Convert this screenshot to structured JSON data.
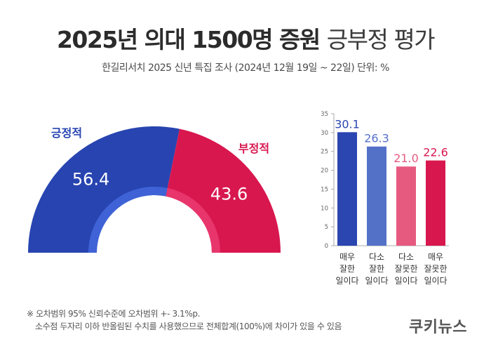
{
  "title_bold": "2025년 의대 1500명 증원",
  "title_light": "긍부정 평가",
  "subtitle": "한길리서치 2025 신년 특집 조사 (2024년 12월 19일 ~ 22일) 단위: %",
  "colors": {
    "positive": "#2744b0",
    "negative": "#d8174f",
    "inner_positive": "#3f63d6",
    "inner_negative": "#e8356c",
    "bar_very_good": "#2b45b1",
    "bar_some_good": "#5471c8",
    "bar_some_bad": "#e65a80",
    "bar_very_bad": "#d8174f"
  },
  "chart_data": [
    {
      "type": "pie",
      "style": "half-donut",
      "categories": [
        "긍정적",
        "부정적"
      ],
      "values": [
        56.4,
        43.6
      ]
    },
    {
      "type": "bar",
      "categories": [
        "매우\n잘한\n일이다",
        "다소\n잘한\n일이다",
        "다소\n잘못한\n일이다",
        "매우\n잘못한\n일이다"
      ],
      "values": [
        30.1,
        26.3,
        21.0,
        22.6
      ],
      "value_labels": [
        "30.1",
        "26.3",
        "21.0",
        "22.6"
      ],
      "ylim": [
        0,
        35
      ],
      "yticks": [
        0,
        5,
        10,
        15,
        20,
        25,
        30,
        35
      ],
      "grid": false
    }
  ],
  "footnote": {
    "line1": "※ 오차범위 95% 신뢰수준에 오차범위 +- 3.1%p.",
    "line2": "소수점 두자리 이하 반올림된 수치를 사용했으므로 전체합계(100%)에 차이가 있을 수 있음"
  },
  "brand": "쿠키뉴스"
}
